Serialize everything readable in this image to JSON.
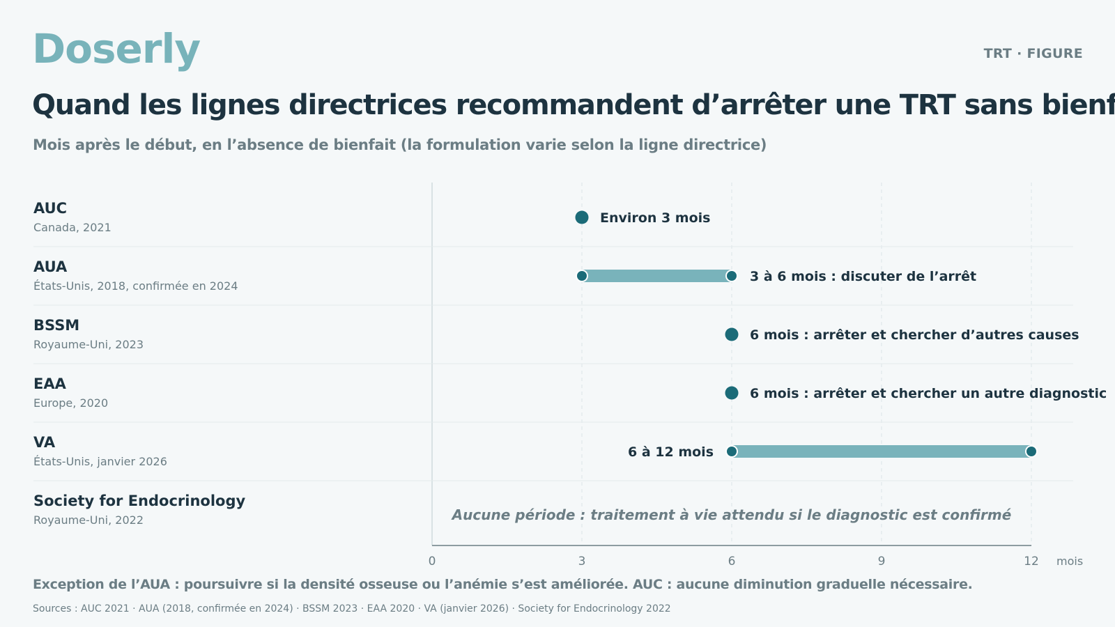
{
  "header": {
    "brand": "Doserly",
    "tag": "TRT · FIGURE",
    "title": "Quand les lignes directrices recommandent d’arrêter une TRT sans bienfait",
    "subtitle": "Mois après le début, en l’absence de bienfait (la formulation varie selon la ligne directrice)"
  },
  "footer": {
    "note": "Exception de l’AUA : poursuivre si la densité osseuse ou l’anémie s’est améliorée. AUC : aucune diminution graduelle nécessaire.",
    "sources": "Sources : AUC 2021 · AUA (2018, confirmée en 2024) · BSSM 2023 · EAA 2020 · VA (janvier 2026) · Society for Endocrinology 2022"
  },
  "colors": {
    "point": "#1b6b78",
    "range_bar": "#79b3bb",
    "grid": "#dce5e8",
    "axis": "#6b7d84"
  },
  "chart_data": {
    "type": "range-dot",
    "xlabel": "mois",
    "xlim": [
      0,
      12
    ],
    "xticks": [
      0,
      3,
      6,
      9,
      12
    ],
    "grid": true,
    "rows": [
      {
        "name": "AUC",
        "detail": "Canada, 2021",
        "start": 3,
        "end": 3,
        "label": "Environ 3 mois",
        "label_side": "right"
      },
      {
        "name": "AUA",
        "detail": "États-Unis, 2018, confirmée en 2024",
        "start": 3,
        "end": 6,
        "label": "3 à 6 mois : discuter de l’arrêt",
        "label_side": "right"
      },
      {
        "name": "BSSM",
        "detail": "Royaume-Uni, 2023",
        "start": 6,
        "end": 6,
        "label": "6 mois : arrêter et chercher d’autres causes",
        "label_side": "right"
      },
      {
        "name": "EAA",
        "detail": "Europe, 2020",
        "start": 6,
        "end": 6,
        "label": "6 mois : arrêter et chercher un autre diagnostic",
        "label_side": "right"
      },
      {
        "name": "VA",
        "detail": "États-Unis, janvier 2026",
        "start": 6,
        "end": 12,
        "label": "6 à 12 mois",
        "label_side": "left"
      },
      {
        "name": "Society for Endocrinology",
        "detail": "Royaume-Uni, 2022",
        "start": null,
        "end": null,
        "label": "Aucune période : traitement à vie attendu si le diagnostic est confirmé",
        "label_side": "center"
      }
    ]
  }
}
